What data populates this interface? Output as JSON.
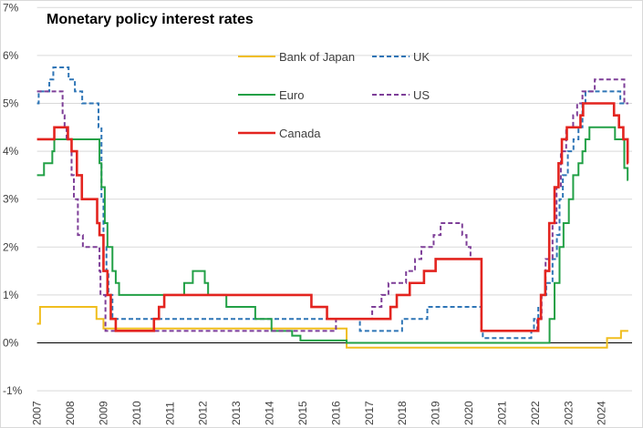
{
  "chart_data": {
    "type": "line",
    "title": "Monetary policy interest rates",
    "xlabel": "",
    "ylabel": "",
    "ylim": [
      -1,
      7
    ],
    "xlim": [
      2007,
      2024.8
    ],
    "y_ticks": [
      "-1%",
      "0%",
      "1%",
      "2%",
      "3%",
      "4%",
      "5%",
      "6%",
      "7%"
    ],
    "y_tick_values": [
      -1,
      0,
      1,
      2,
      3,
      4,
      5,
      6,
      7
    ],
    "x_ticks": [
      "2007",
      "2008",
      "2009",
      "2010",
      "2011",
      "2012",
      "2013",
      "2014",
      "2015",
      "2016",
      "2017",
      "2018",
      "2019",
      "2020",
      "2021",
      "2022",
      "2023",
      "2024"
    ],
    "grid": "horizontal",
    "legend_position": "top-center",
    "step": true,
    "series": [
      {
        "name": "Bank of Japan",
        "color": "#f0be1e",
        "dashed": false,
        "points": [
          [
            2007,
            0.4
          ],
          [
            2007.09,
            0.75
          ],
          [
            2008.79,
            0.5
          ],
          [
            2009.0,
            0.3
          ],
          [
            2016.32,
            -0.1
          ],
          [
            2024.16,
            0.1
          ],
          [
            2024.58,
            0.25
          ],
          [
            2024.8,
            0.25
          ]
        ]
      },
      {
        "name": "UK",
        "color": "#2e75b6",
        "dashed": true,
        "points": [
          [
            2007,
            5.0
          ],
          [
            2007.05,
            5.25
          ],
          [
            2007.37,
            5.5
          ],
          [
            2007.49,
            5.75
          ],
          [
            2007.95,
            5.5
          ],
          [
            2008.14,
            5.25
          ],
          [
            2008.36,
            5.0
          ],
          [
            2008.85,
            4.5
          ],
          [
            2008.94,
            3.0
          ],
          [
            2009.0,
            2.0
          ],
          [
            2009.09,
            1.5
          ],
          [
            2009.15,
            1.0
          ],
          [
            2009.27,
            0.5
          ],
          [
            2016.72,
            0.25
          ],
          [
            2017.99,
            0.5
          ],
          [
            2018.75,
            0.75
          ],
          [
            2020.38,
            0.25
          ],
          [
            2020.42,
            0.1
          ],
          [
            2021.88,
            0.25
          ],
          [
            2021.96,
            0.5
          ],
          [
            2022.09,
            0.75
          ],
          [
            2022.17,
            1.0
          ],
          [
            2022.33,
            1.25
          ],
          [
            2022.52,
            1.75
          ],
          [
            2022.65,
            2.25
          ],
          [
            2022.73,
            3.0
          ],
          [
            2022.83,
            3.5
          ],
          [
            2022.98,
            4.0
          ],
          [
            2023.15,
            4.25
          ],
          [
            2023.3,
            4.5
          ],
          [
            2023.42,
            5.0
          ],
          [
            2023.51,
            5.25
          ],
          [
            2024.56,
            5.0
          ],
          [
            2024.8,
            5.0
          ]
        ]
      },
      {
        "name": "Euro",
        "color": "#22a046",
        "dashed": false,
        "points": [
          [
            2007,
            3.5
          ],
          [
            2007.21,
            3.75
          ],
          [
            2007.46,
            4.0
          ],
          [
            2007.52,
            4.25
          ],
          [
            2008.88,
            3.75
          ],
          [
            2008.94,
            3.25
          ],
          [
            2009.04,
            2.5
          ],
          [
            2009.12,
            2.0
          ],
          [
            2009.27,
            1.5
          ],
          [
            2009.37,
            1.25
          ],
          [
            2009.47,
            1.0
          ],
          [
            2011.43,
            1.25
          ],
          [
            2011.69,
            1.5
          ],
          [
            2012.05,
            1.25
          ],
          [
            2012.15,
            1.0
          ],
          [
            2012.7,
            0.75
          ],
          [
            2013.57,
            0.5
          ],
          [
            2014.06,
            0.25
          ],
          [
            2014.68,
            0.15
          ],
          [
            2014.93,
            0.05
          ],
          [
            2016.32,
            0.0
          ],
          [
            2022.43,
            0.5
          ],
          [
            2022.58,
            1.25
          ],
          [
            2022.73,
            2.0
          ],
          [
            2022.85,
            2.5
          ],
          [
            2023.01,
            3.0
          ],
          [
            2023.14,
            3.5
          ],
          [
            2023.3,
            3.75
          ],
          [
            2023.42,
            4.0
          ],
          [
            2023.51,
            4.25
          ],
          [
            2023.63,
            4.5
          ],
          [
            2024.4,
            4.25
          ],
          [
            2024.68,
            3.65
          ],
          [
            2024.78,
            3.4
          ],
          [
            2024.8,
            3.4
          ]
        ]
      },
      {
        "name": "US",
        "color": "#7e3f98",
        "dashed": true,
        "points": [
          [
            2007,
            5.25
          ],
          [
            2007.77,
            4.75
          ],
          [
            2007.83,
            4.5
          ],
          [
            2007.89,
            4.25
          ],
          [
            2008.04,
            3.5
          ],
          [
            2008.11,
            3.0
          ],
          [
            2008.23,
            2.25
          ],
          [
            2008.38,
            2.0
          ],
          [
            2008.88,
            1.5
          ],
          [
            2008.91,
            1.0
          ],
          [
            2009.06,
            0.25
          ],
          [
            2016.0,
            0.5
          ],
          [
            2017.09,
            0.75
          ],
          [
            2017.37,
            1.0
          ],
          [
            2017.58,
            1.25
          ],
          [
            2018.11,
            1.5
          ],
          [
            2018.38,
            1.75
          ],
          [
            2018.57,
            2.0
          ],
          [
            2018.94,
            2.25
          ],
          [
            2019.15,
            2.5
          ],
          [
            2019.8,
            2.25
          ],
          [
            2019.93,
            2.0
          ],
          [
            2020.05,
            1.75
          ],
          [
            2020.38,
            0.25
          ],
          [
            2022.06,
            0.5
          ],
          [
            2022.19,
            1.0
          ],
          [
            2022.31,
            1.75
          ],
          [
            2022.52,
            2.5
          ],
          [
            2022.64,
            3.25
          ],
          [
            2022.77,
            4.0
          ],
          [
            2022.93,
            4.5
          ],
          [
            2023.14,
            4.75
          ],
          [
            2023.26,
            5.0
          ],
          [
            2023.42,
            5.25
          ],
          [
            2023.79,
            5.5
          ],
          [
            2024.68,
            5.0
          ],
          [
            2024.8,
            5.0
          ]
        ]
      },
      {
        "name": "Canada",
        "color": "#e3241f",
        "dashed": false,
        "points": [
          [
            2007,
            4.25
          ],
          [
            2007.52,
            4.5
          ],
          [
            2007.93,
            4.25
          ],
          [
            2008.04,
            4.0
          ],
          [
            2008.2,
            3.5
          ],
          [
            2008.35,
            3.0
          ],
          [
            2008.81,
            2.5
          ],
          [
            2008.88,
            2.25
          ],
          [
            2009.0,
            1.5
          ],
          [
            2009.12,
            1.0
          ],
          [
            2009.22,
            0.5
          ],
          [
            2009.37,
            0.25
          ],
          [
            2010.52,
            0.5
          ],
          [
            2010.67,
            0.75
          ],
          [
            2010.83,
            1.0
          ],
          [
            2015.26,
            0.75
          ],
          [
            2015.73,
            0.5
          ],
          [
            2017.64,
            0.75
          ],
          [
            2017.83,
            1.0
          ],
          [
            2018.22,
            1.25
          ],
          [
            2018.65,
            1.5
          ],
          [
            2019.0,
            1.75
          ],
          [
            2020.38,
            0.25
          ],
          [
            2022.09,
            0.5
          ],
          [
            2022.17,
            1.0
          ],
          [
            2022.3,
            1.5
          ],
          [
            2022.42,
            2.5
          ],
          [
            2022.58,
            3.25
          ],
          [
            2022.7,
            3.75
          ],
          [
            2022.8,
            4.25
          ],
          [
            2022.95,
            4.5
          ],
          [
            2023.36,
            4.75
          ],
          [
            2023.44,
            5.0
          ],
          [
            2024.37,
            4.75
          ],
          [
            2024.52,
            4.5
          ],
          [
            2024.65,
            4.25
          ],
          [
            2024.78,
            3.75
          ],
          [
            2024.8,
            3.75
          ]
        ]
      }
    ]
  }
}
